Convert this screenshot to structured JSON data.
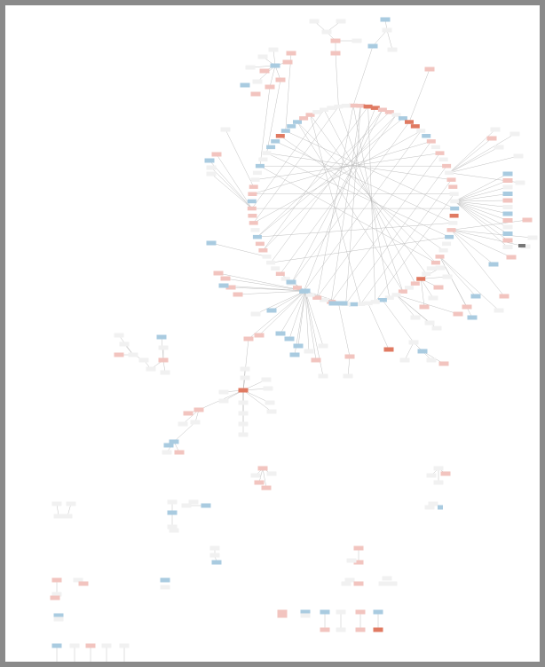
{
  "diagram": {
    "type": "gene-interaction-network",
    "node_labels": [],
    "colors": {
      "page_frame": "#8a8a8a",
      "background": "#ffffff",
      "edge": "#b9b9b9",
      "up_regulated": "#f2c4bf",
      "up_strong": "#e07a62",
      "down_regulated": "#a9cbe0",
      "neutral": "#f1f1f1"
    }
  }
}
